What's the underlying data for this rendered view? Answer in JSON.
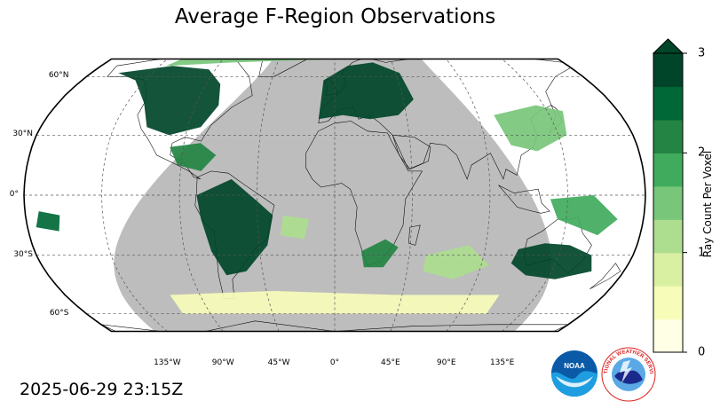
{
  "title": "Average F-Region Observations",
  "timestamp": "2025-06-29 23:15Z",
  "map": {
    "projection": "robinson",
    "lat_labels": [
      {
        "lat": 60,
        "text": "60°N"
      },
      {
        "lat": 30,
        "text": "30°N"
      },
      {
        "lat": 0,
        "text": "0°"
      },
      {
        "lat": -30,
        "text": "30°S"
      },
      {
        "lat": -60,
        "text": "60°S"
      }
    ],
    "lon_labels": [
      {
        "lon": -135,
        "text": "135°W"
      },
      {
        "lon": -90,
        "text": "90°W"
      },
      {
        "lon": -45,
        "text": "45°W"
      },
      {
        "lon": 0,
        "text": "0°"
      },
      {
        "lon": 45,
        "text": "45°E"
      },
      {
        "lon": 90,
        "text": "90°E"
      },
      {
        "lon": 135,
        "text": "135°E"
      }
    ],
    "night_shade_color": "#bdbdbd",
    "observation_regions": [
      {
        "region": "North America",
        "level": 3
      },
      {
        "region": "Europe",
        "level": 3
      },
      {
        "region": "South America",
        "level": 3
      },
      {
        "region": "Southern Australia",
        "level": 2.7
      },
      {
        "region": "Caribbean",
        "level": 2.3
      },
      {
        "region": "Southern Africa",
        "level": 2.2
      },
      {
        "region": "Pacific Ocean",
        "level": 2.5
      },
      {
        "region": "Arctic",
        "level": 1.6
      },
      {
        "region": "East Asia",
        "level": 1.5
      },
      {
        "region": "Western Pacific",
        "level": 1.8
      },
      {
        "region": "South Atlantic",
        "level": 1.3
      },
      {
        "region": "Indian Ocean",
        "level": 1.0
      },
      {
        "region": "Southern Ocean",
        "level": 0.6
      }
    ]
  },
  "colorbar": {
    "label": "Ray Count Per Voxel",
    "min": 0,
    "max": 3,
    "extend": "max",
    "ticks": [
      {
        "value": 0,
        "text": "0"
      },
      {
        "value": 1,
        "text": "1"
      },
      {
        "value": 2,
        "text": "2"
      },
      {
        "value": 3,
        "text": "3"
      }
    ],
    "colors": [
      "#ffffe5",
      "#f7fcb9",
      "#d9f0a3",
      "#addd8e",
      "#78c679",
      "#41ab5d",
      "#238443",
      "#006837",
      "#004529"
    ]
  },
  "logos": {
    "noaa": {
      "text": "NOAA"
    },
    "nws": {
      "text": "NATIONAL WEATHER SERVICE"
    }
  }
}
